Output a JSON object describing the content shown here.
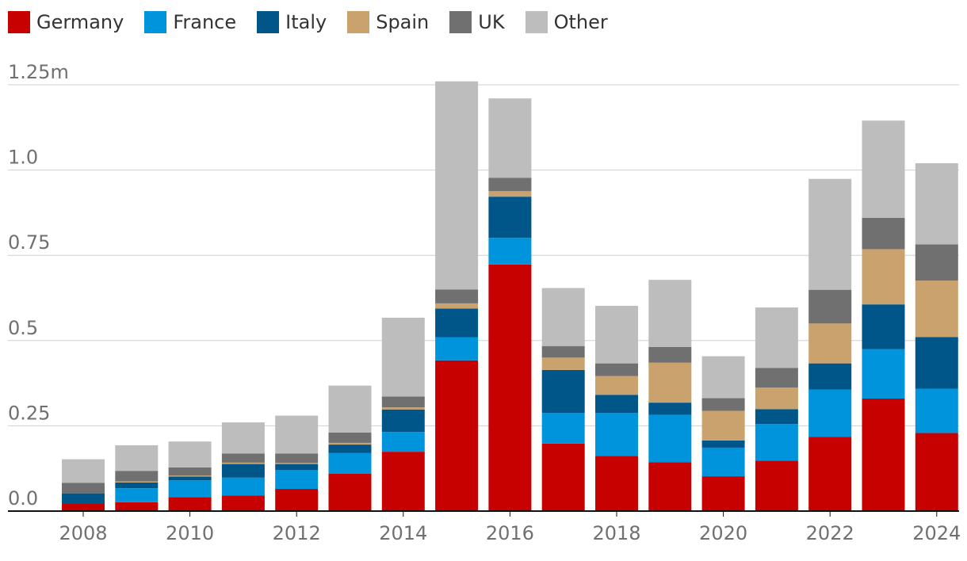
{
  "chart_data": {
    "type": "bar",
    "stacked": true,
    "title": "",
    "xlabel": "",
    "ylabel": "",
    "categories": [
      "2008",
      "2009",
      "2010",
      "2011",
      "2012",
      "2013",
      "2014",
      "2015",
      "2016",
      "2017",
      "2018",
      "2019",
      "2020",
      "2021",
      "2022",
      "2023",
      "2024"
    ],
    "x_tick_labels": [
      "2008",
      "2010",
      "2012",
      "2014",
      "2016",
      "2018",
      "2020",
      "2022",
      "2024"
    ],
    "y_tick_labels": [
      "0.0",
      "0.25",
      "0.5",
      "0.75",
      "1.0",
      "1.25m"
    ],
    "y_ticks": [
      0,
      0.25,
      0.5,
      0.75,
      1.0,
      1.25
    ],
    "ylim": [
      0,
      1.25
    ],
    "legend_position": "top-left",
    "series": [
      {
        "name": "Germany",
        "color": "#c70000",
        "values": [
          0.022,
          0.026,
          0.041,
          0.046,
          0.065,
          0.11,
          0.174,
          0.442,
          0.723,
          0.198,
          0.162,
          0.143,
          0.102,
          0.148,
          0.218,
          0.33,
          0.229
        ]
      },
      {
        "name": "France",
        "color": "#0094dc",
        "values": [
          0.0,
          0.041,
          0.049,
          0.052,
          0.055,
          0.06,
          0.058,
          0.068,
          0.078,
          0.09,
          0.126,
          0.139,
          0.084,
          0.107,
          0.138,
          0.145,
          0.13
        ]
      },
      {
        "name": "Italy",
        "color": "#005689",
        "values": [
          0.03,
          0.017,
          0.011,
          0.04,
          0.018,
          0.025,
          0.066,
          0.084,
          0.121,
          0.126,
          0.053,
          0.036,
          0.021,
          0.044,
          0.077,
          0.131,
          0.151
        ]
      },
      {
        "name": "Spain",
        "color": "#c9a26e",
        "values": [
          0.0,
          0.003,
          0.003,
          0.004,
          0.003,
          0.005,
          0.006,
          0.015,
          0.016,
          0.036,
          0.055,
          0.117,
          0.087,
          0.063,
          0.117,
          0.162,
          0.166
        ]
      },
      {
        "name": "UK",
        "color": "#707070",
        "values": [
          0.031,
          0.031,
          0.024,
          0.027,
          0.028,
          0.03,
          0.032,
          0.041,
          0.039,
          0.034,
          0.037,
          0.046,
          0.037,
          0.058,
          0.099,
          0.092,
          0.106
        ]
      },
      {
        "name": "Other",
        "color": "#bdbdbd",
        "values": [
          0.069,
          0.075,
          0.076,
          0.091,
          0.111,
          0.138,
          0.231,
          0.61,
          0.233,
          0.17,
          0.169,
          0.197,
          0.123,
          0.177,
          0.325,
          0.285,
          0.238
        ]
      }
    ]
  }
}
